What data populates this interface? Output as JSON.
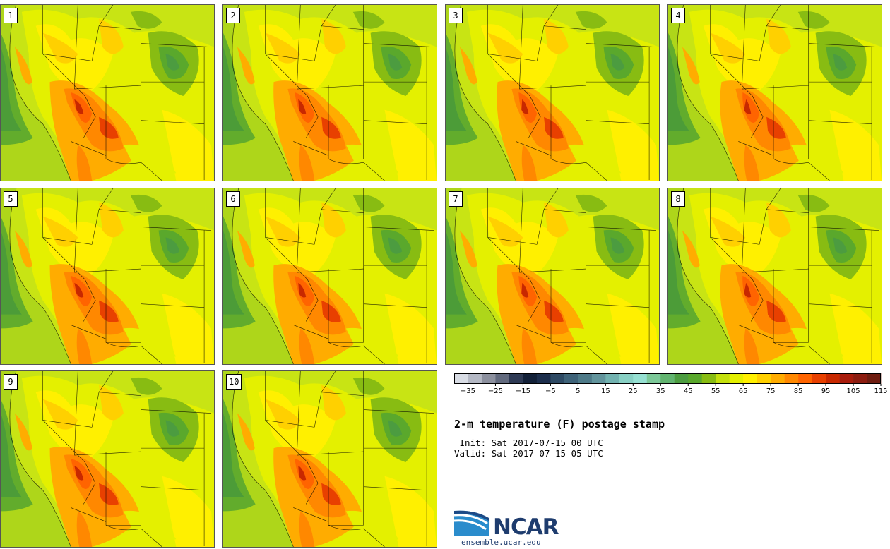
{
  "title": "2-m temperature (F) postage stamp",
  "init_label": " Init: Sat 2017-07-15 00 UTC",
  "valid_label": "Valid: Sat 2017-07-15 05 UTC",
  "logo": {
    "text": "NCAR",
    "url": "ensemble.ucar.edu"
  },
  "members": [
    {
      "label": "1"
    },
    {
      "label": "2"
    },
    {
      "label": "3"
    },
    {
      "label": "4"
    },
    {
      "label": "5"
    },
    {
      "label": "6"
    },
    {
      "label": "7"
    },
    {
      "label": "8"
    },
    {
      "label": "9"
    },
    {
      "label": "10"
    }
  ],
  "colorbar": {
    "levels_start": -40,
    "level_step": 5,
    "colors": [
      "#d8dce4",
      "#b4b8c4",
      "#8c909e",
      "#626a7e",
      "#2e3a54",
      "#122038",
      "#1c2e4c",
      "#2e4a64",
      "#3e6278",
      "#4e7a88",
      "#62949c",
      "#72b2b0",
      "#88d0c4",
      "#96e0d2",
      "#7cc898",
      "#62b470",
      "#4c9c40",
      "#5aa82c",
      "#88bc12",
      "#c4e00c",
      "#e4f000",
      "#fff000",
      "#ffd000",
      "#ffac00",
      "#ff8800",
      "#ff6400",
      "#e84000",
      "#c82800",
      "#a81c0c",
      "#8c1c10",
      "#6e1c10"
    ],
    "tick_labels": [
      "−35",
      "−25",
      "−15",
      "−5",
      "5",
      "15",
      "25",
      "35",
      "45",
      "55",
      "65",
      "75",
      "85",
      "95",
      "105",
      "115"
    ]
  }
}
